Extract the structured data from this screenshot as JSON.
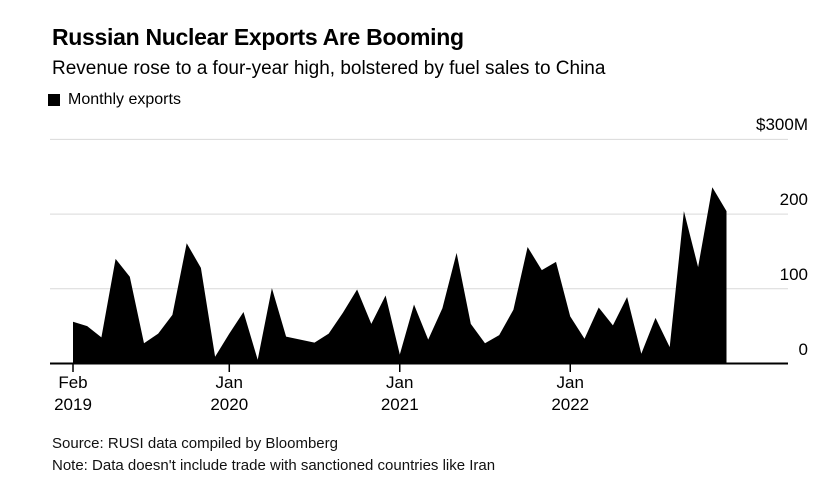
{
  "page": {
    "title": "Russian Nuclear Exports Are Booming",
    "subtitle": "Revenue rose to a four-year high, bolstered by fuel sales to China",
    "source_line": "Source: RUSI data compiled by Bloomberg",
    "note_line": "Note: Data doesn't include trade with sanctioned countries like Iran"
  },
  "legend": {
    "items": [
      {
        "label": "Monthly exports",
        "marker": "square",
        "swatch_color": "#000000"
      }
    ]
  },
  "colors": {
    "background": "#ffffff",
    "text": "#000000",
    "series_fill": "#000000",
    "gridline": "#d9d9d9",
    "axis_line": "#000000"
  },
  "chart_data": {
    "type": "area",
    "title": "Russian Nuclear Exports Are Booming",
    "subtitle": "Revenue rose to a four-year high, bolstered by fuel sales to China",
    "series_name": "Monthly exports",
    "unit": "USD millions per month",
    "ylim": [
      0,
      300
    ],
    "grid": "horizontal",
    "legend_position": "top-left",
    "y_axis": {
      "ticks": [
        {
          "value": 300,
          "label": "$300M"
        },
        {
          "value": 200,
          "label": "200"
        },
        {
          "value": 100,
          "label": "100"
        },
        {
          "value": 0,
          "label": "0"
        }
      ]
    },
    "x_axis": {
      "ticks": [
        {
          "month_index": 0,
          "line1": "Feb",
          "line2": "2019"
        },
        {
          "month_index": 11,
          "line1": "Jan",
          "line2": "2020"
        },
        {
          "month_index": 23,
          "line1": "Jan",
          "line2": "2021"
        },
        {
          "month_index": 35,
          "line1": "Jan",
          "line2": "2022"
        }
      ]
    },
    "months": [
      "Feb 2019",
      "Mar 2019",
      "Apr 2019",
      "May 2019",
      "Jun 2019",
      "Jul 2019",
      "Aug 2019",
      "Sep 2019",
      "Oct 2019",
      "Nov 2019",
      "Dec 2019",
      "Jan 2020",
      "Feb 2020",
      "Mar 2020",
      "Apr 2020",
      "May 2020",
      "Jun 2020",
      "Jul 2020",
      "Aug 2020",
      "Sep 2020",
      "Oct 2020",
      "Nov 2020",
      "Dec 2020",
      "Jan 2021",
      "Feb 2021",
      "Mar 2021",
      "Apr 2021",
      "May 2021",
      "Jun 2021",
      "Jul 2021",
      "Aug 2021",
      "Sep 2021",
      "Oct 2021",
      "Nov 2021",
      "Dec 2021",
      "Jan 2022",
      "Feb 2022",
      "Mar 2022",
      "Apr 2022",
      "May 2022",
      "Jun 2022",
      "Jul 2022",
      "Aug 2022",
      "Sep 2022",
      "Oct 2022",
      "Nov 2022",
      "Dec 2022"
    ],
    "values": [
      56,
      50,
      35,
      140,
      116,
      27,
      40,
      65,
      161,
      128,
      9,
      40,
      69,
      5,
      101,
      36,
      32,
      28,
      40,
      68,
      99,
      53,
      91,
      12,
      79,
      32,
      74,
      148,
      53,
      27,
      38,
      72,
      156,
      125,
      136,
      63,
      33,
      75,
      51,
      89,
      13,
      61,
      22,
      204,
      129,
      236,
      204
    ]
  }
}
